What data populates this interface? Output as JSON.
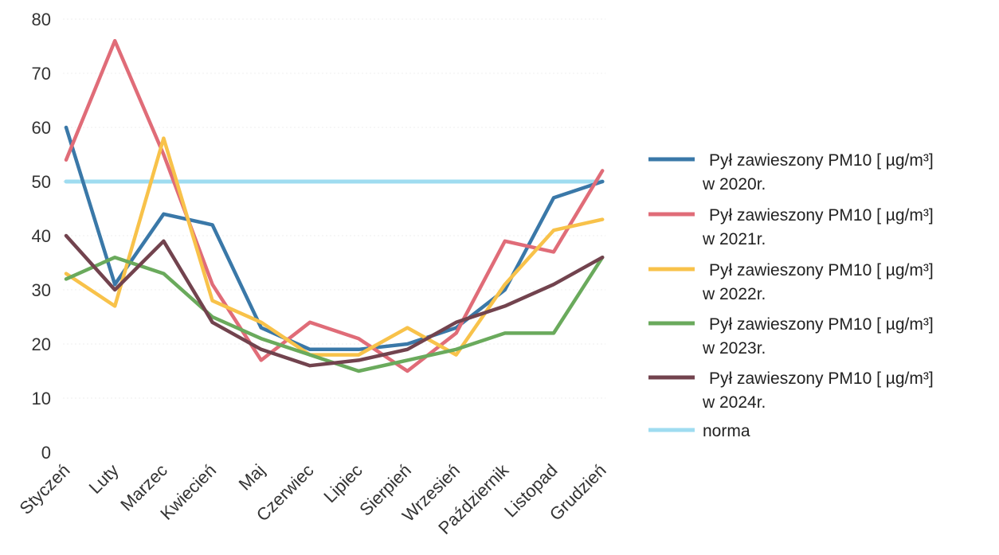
{
  "chart_data": {
    "type": "line",
    "title": "",
    "xlabel": "",
    "ylabel": "",
    "categories": [
      "Styczeń",
      "Luty",
      "Marzec",
      "Kwiecień",
      "Maj",
      "Czerwiec",
      "Lipiec",
      "Sierpień",
      "Wrzesień",
      "Październik",
      "Listopad",
      "Grudzień"
    ],
    "ylim": [
      0,
      80
    ],
    "yticks": [
      0,
      10,
      20,
      30,
      40,
      50,
      60,
      70,
      80
    ],
    "grid": true,
    "legend_position": "right",
    "series": [
      {
        "name_line1": "Pył zawieszony PM10  [ µg/m³]",
        "name_line2": "w 2020r.",
        "color": "#3a78a8",
        "values": [
          60,
          31,
          44,
          42,
          23,
          19,
          19,
          20,
          23,
          30,
          47,
          50
        ]
      },
      {
        "name_line1": "Pył zawieszony PM10  [ µg/m³]",
        "name_line2": "w 2021r.",
        "color": "#e06c78",
        "values": [
          54,
          76,
          55,
          31,
          17,
          24,
          21,
          15,
          22,
          39,
          37,
          52
        ]
      },
      {
        "name_line1": "Pył zawieszony PM10  [ µg/m³]",
        "name_line2": "w 2022r.",
        "color": "#f8c24a",
        "values": [
          33,
          27,
          58,
          28,
          24,
          18,
          18,
          23,
          18,
          31,
          41,
          43
        ]
      },
      {
        "name_line1": "Pył zawieszony PM10  [ µg/m³]",
        "name_line2": "w 2023r.",
        "color": "#6aaa5c",
        "values": [
          32,
          36,
          33,
          25,
          21,
          18,
          15,
          17,
          19,
          22,
          22,
          36
        ]
      },
      {
        "name_line1": "Pył zawieszony PM10  [ µg/m³]",
        "name_line2": "w 2024r.",
        "color": "#72434e",
        "values": [
          40,
          30,
          39,
          24,
          19,
          16,
          17,
          19,
          24,
          27,
          31,
          36
        ]
      },
      {
        "name_line1": "norma",
        "name_line2": "",
        "color": "#9fdcf0",
        "values": [
          50,
          50,
          50,
          50,
          50,
          50,
          50,
          50,
          50,
          50,
          50,
          50
        ]
      }
    ]
  }
}
